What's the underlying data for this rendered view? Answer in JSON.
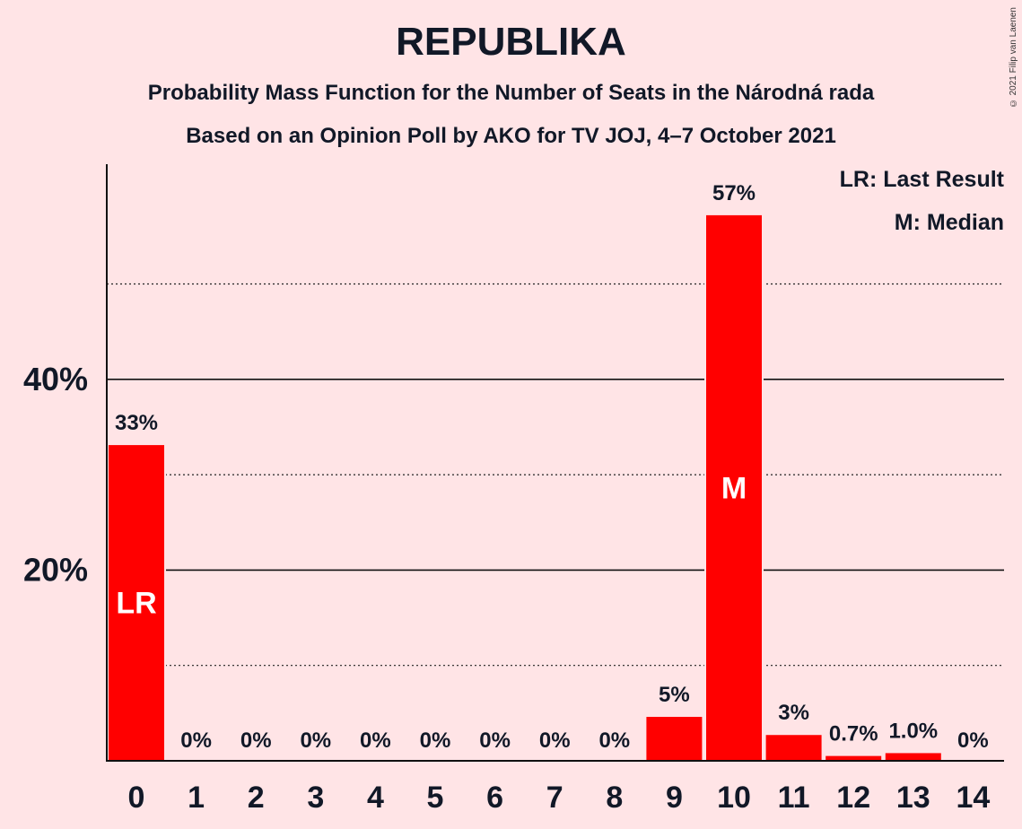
{
  "title": "REPUBLIKA",
  "subtitle1": "Probability Mass Function for the Number of Seats in the Národná rada",
  "subtitle2": "Based on an Opinion Poll by AKO for TV JOJ, 4–7 October 2021",
  "copyright": "© 2021 Filip van Laenen",
  "legend": {
    "last_result": "LR: Last Result",
    "median": "M: Median"
  },
  "colors": {
    "bar": "#ff0000",
    "background": "#ffe4e6",
    "text": "#111827"
  },
  "chart_data": {
    "type": "bar",
    "categories": [
      "0",
      "1",
      "2",
      "3",
      "4",
      "5",
      "6",
      "7",
      "8",
      "9",
      "10",
      "11",
      "12",
      "13",
      "14"
    ],
    "values": [
      33,
      0,
      0,
      0,
      0,
      0,
      0,
      0,
      0,
      5,
      57,
      3,
      0.7,
      1.0,
      0
    ],
    "bar_heights": [
      33.2,
      0,
      0,
      0,
      0,
      0,
      0,
      0,
      0,
      4.7,
      57.3,
      2.8,
      0.6,
      0.9,
      0
    ],
    "value_labels": [
      "33%",
      "0%",
      "0%",
      "0%",
      "0%",
      "0%",
      "0%",
      "0%",
      "0%",
      "5%",
      "57%",
      "3%",
      "0.7%",
      "1.0%",
      "0%"
    ],
    "markers": {
      "0": "LR",
      "10": "M"
    },
    "yticks": [
      20,
      40
    ],
    "ytick_labels": [
      "20%",
      "40%"
    ],
    "ylim": [
      0,
      62.5
    ],
    "solid_gridlines": [
      20,
      40
    ],
    "dotted_gridlines": [
      10,
      30,
      50
    ],
    "legend_position": "top-right"
  }
}
